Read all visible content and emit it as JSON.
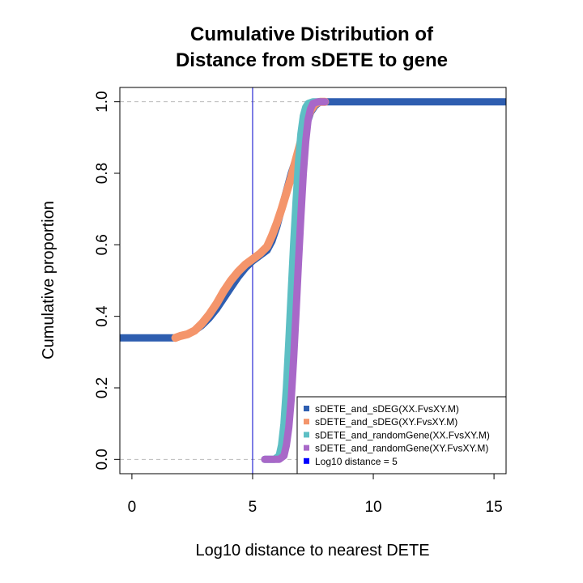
{
  "chart_data": {
    "type": "line",
    "title_line1": "Cumulative Distribution of",
    "title_line2": "Distance from sDETE to gene",
    "xlabel": "Log10 distance to nearest DETE",
    "ylabel": "Cumulative proportion",
    "xlim": [
      -0.5,
      15.5
    ],
    "ylim": [
      -0.04,
      1.04
    ],
    "x_ticks": [
      0,
      5,
      10,
      15
    ],
    "x_tick_labels": [
      "0",
      "5",
      "10",
      "15"
    ],
    "y_ticks": [
      0.0,
      0.2,
      0.4,
      0.6,
      0.8,
      1.0
    ],
    "y_tick_labels": [
      "0.0",
      "0.2",
      "0.4",
      "0.6",
      "0.8",
      "1.0"
    ],
    "reference_hlines": [
      0,
      1
    ],
    "reference_hline_color": "#bbbbbb",
    "vline": {
      "x": 5,
      "color": "#0000cc"
    },
    "legend_position": "bottom-right",
    "legend": [
      {
        "label": "sDETE_and_sDEG(XX.FvsXY.M)",
        "color": "#2e5eb0"
      },
      {
        "label": "sDETE_and_sDEG(XY.FvsXY.M)",
        "color": "#f4956b"
      },
      {
        "label": "sDETE_and_randomGene(XX.FvsXY.M)",
        "color": "#5dbfc4"
      },
      {
        "label": "sDETE_and_randomGene(XY.FvsXY.M)",
        "color": "#a868c8"
      },
      {
        "label": "Log10 distance = 5",
        "color": "#0000ff"
      }
    ],
    "series": [
      {
        "color": "#2e5eb0",
        "width": 9,
        "x": [
          -0.5,
          1.8,
          2.0,
          2.3,
          2.6,
          2.9,
          3.2,
          3.5,
          3.8,
          4.1,
          4.4,
          4.7,
          5.0,
          5.3,
          5.6,
          5.8,
          6.0,
          6.2,
          6.4,
          6.6,
          6.8,
          7.0,
          7.2,
          7.4,
          7.6,
          7.8,
          15.5
        ],
        "y": [
          0.34,
          0.34,
          0.345,
          0.35,
          0.36,
          0.375,
          0.395,
          0.42,
          0.45,
          0.48,
          0.51,
          0.535,
          0.555,
          0.57,
          0.585,
          0.61,
          0.65,
          0.7,
          0.75,
          0.8,
          0.84,
          0.88,
          0.93,
          0.97,
          0.99,
          1.0,
          1.0
        ]
      },
      {
        "color": "#f4956b",
        "width": 10,
        "x": [
          1.8,
          2.0,
          2.3,
          2.6,
          2.9,
          3.2,
          3.5,
          3.8,
          4.1,
          4.4,
          4.7,
          5.0,
          5.3,
          5.6,
          5.8,
          6.0,
          6.2,
          6.4,
          6.6,
          6.8,
          7.0,
          7.2,
          7.4,
          7.6,
          7.8,
          8.0
        ],
        "y": [
          0.34,
          0.345,
          0.35,
          0.36,
          0.38,
          0.405,
          0.435,
          0.47,
          0.5,
          0.525,
          0.545,
          0.56,
          0.575,
          0.595,
          0.625,
          0.66,
          0.7,
          0.745,
          0.79,
          0.84,
          0.89,
          0.94,
          0.975,
          0.995,
          1.0,
          1.0
        ]
      },
      {
        "color": "#5dbfc4",
        "width": 9,
        "x": [
          5.5,
          5.9,
          6.1,
          6.2,
          6.3,
          6.4,
          6.5,
          6.6,
          6.7,
          6.8,
          6.9,
          7.0,
          7.1,
          7.2,
          7.3,
          7.5,
          7.8
        ],
        "y": [
          0.0,
          0.0,
          0.01,
          0.04,
          0.1,
          0.2,
          0.33,
          0.47,
          0.6,
          0.72,
          0.83,
          0.91,
          0.96,
          0.985,
          0.995,
          1.0,
          1.0
        ]
      },
      {
        "color": "#a868c8",
        "width": 9,
        "x": [
          5.5,
          6.1,
          6.3,
          6.4,
          6.5,
          6.6,
          6.7,
          6.8,
          6.9,
          7.0,
          7.1,
          7.2,
          7.3,
          7.4,
          7.5,
          7.7,
          8.0
        ],
        "y": [
          0.0,
          0.0,
          0.01,
          0.04,
          0.09,
          0.17,
          0.28,
          0.41,
          0.55,
          0.68,
          0.8,
          0.89,
          0.95,
          0.98,
          0.995,
          1.0,
          1.0
        ]
      }
    ]
  }
}
